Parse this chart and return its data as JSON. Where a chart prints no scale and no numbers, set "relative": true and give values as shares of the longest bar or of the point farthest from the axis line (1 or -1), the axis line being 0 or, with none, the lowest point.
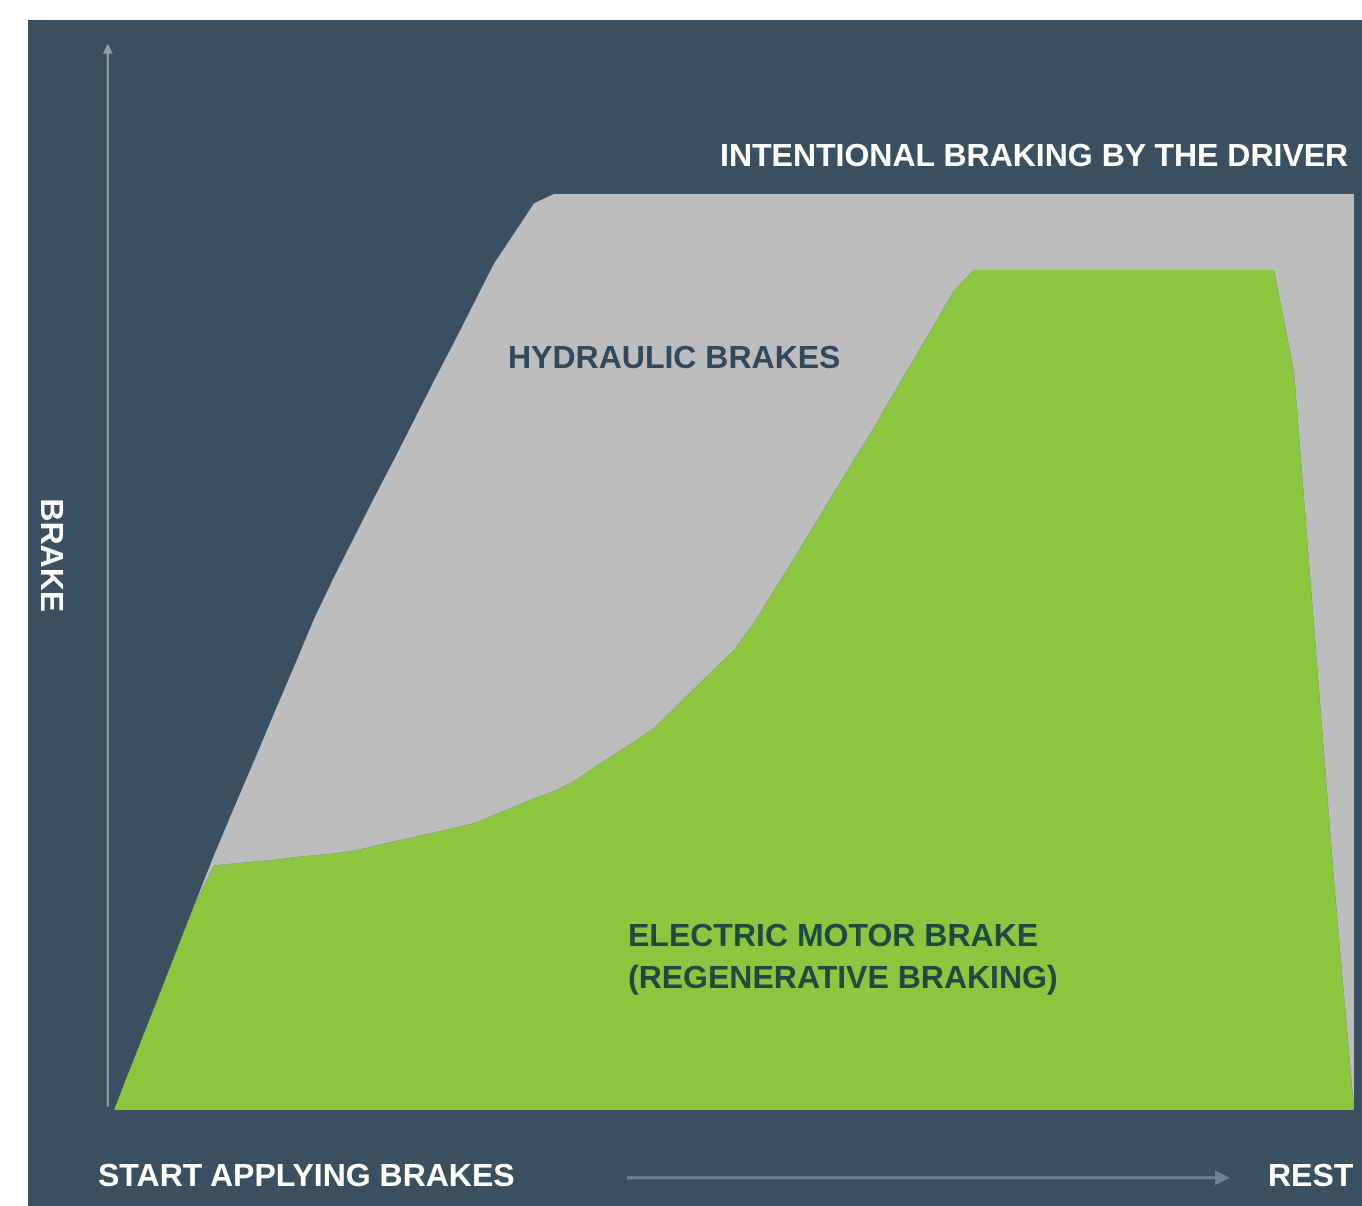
{
  "chart_data": {
    "type": "area",
    "stacked": true,
    "relative": true,
    "categories": [
      null,
      null,
      null,
      null,
      null,
      null,
      null,
      null,
      null,
      null,
      null,
      null,
      null,
      null,
      null,
      null,
      null,
      null,
      null,
      null,
      null,
      null,
      null,
      null,
      null,
      null,
      null,
      null,
      null,
      null,
      null,
      null,
      null,
      null,
      null,
      null,
      null,
      null,
      null,
      null,
      null,
      null,
      null,
      null,
      null,
      null,
      null,
      null,
      null,
      null,
      null,
      null,
      null,
      null,
      null,
      null,
      null,
      null,
      null,
      null,
      null,
      null,
      null
    ],
    "xlabel": "START APPLYING BRAKES",
    "ylabel": "BRAKE",
    "annotations": [
      {
        "text": "INTENTIONAL BRAKING BY THE DRIVER",
        "y": 1
      },
      "REST"
    ],
    "series": [
      {
        "name": "ELECTRIC MOTOR BRAKE\n(REGENERATIVE BRAKING)",
        "color": "#8cc63e",
        "values": [
          0,
          0.056,
          0.111,
          0.167,
          0.223,
          0.267,
          0.269,
          0.271,
          0.273,
          0.276,
          0.278,
          0.28,
          0.283,
          0.288,
          0.293,
          0.298,
          0.303,
          0.308,
          0.313,
          0.322,
          0.331,
          0.34,
          0.348,
          0.359,
          0.374,
          0.388,
          0.402,
          0.417,
          0.438,
          0.46,
          0.481,
          0.502,
          0.532,
          0.567,
          0.602,
          0.638,
          0.674,
          0.71,
          0.745,
          0.783,
          0.82,
          0.857,
          0.895,
          0.917,
          0.917,
          0.917,
          0.917,
          0.917,
          0.917,
          0.917,
          0.917,
          0.917,
          0.917,
          0.917,
          0.917,
          0.917,
          0.917,
          0.917,
          0.917,
          0.806,
          0.528,
          0.25,
          0
        ]
      },
      {
        "name": "HYDRAULIC BRAKES",
        "color": "#bdbdbd",
        "values": [
          0,
          0,
          0,
          0,
          0,
          0.011,
          0.061,
          0.11,
          0.16,
          0.208,
          0.258,
          0.302,
          0.342,
          0.38,
          0.417,
          0.455,
          0.493,
          0.53,
          0.568,
          0.602,
          0.626,
          0.65,
          0.652,
          0.641,
          0.626,
          0.612,
          0.598,
          0.583,
          0.562,
          0.54,
          0.519,
          0.498,
          0.468,
          0.433,
          0.398,
          0.362,
          0.326,
          0.29,
          0.255,
          0.217,
          0.18,
          0.143,
          0.105,
          0.083,
          0.083,
          0.083,
          0.083,
          0.083,
          0.083,
          0.083,
          0.083,
          0.083,
          0.083,
          0.083,
          0.083,
          0.083,
          0.083,
          0.083,
          0.083,
          0.194,
          0.472,
          0.75,
          1
        ]
      }
    ],
    "grid": false,
    "legend": false
  }
}
